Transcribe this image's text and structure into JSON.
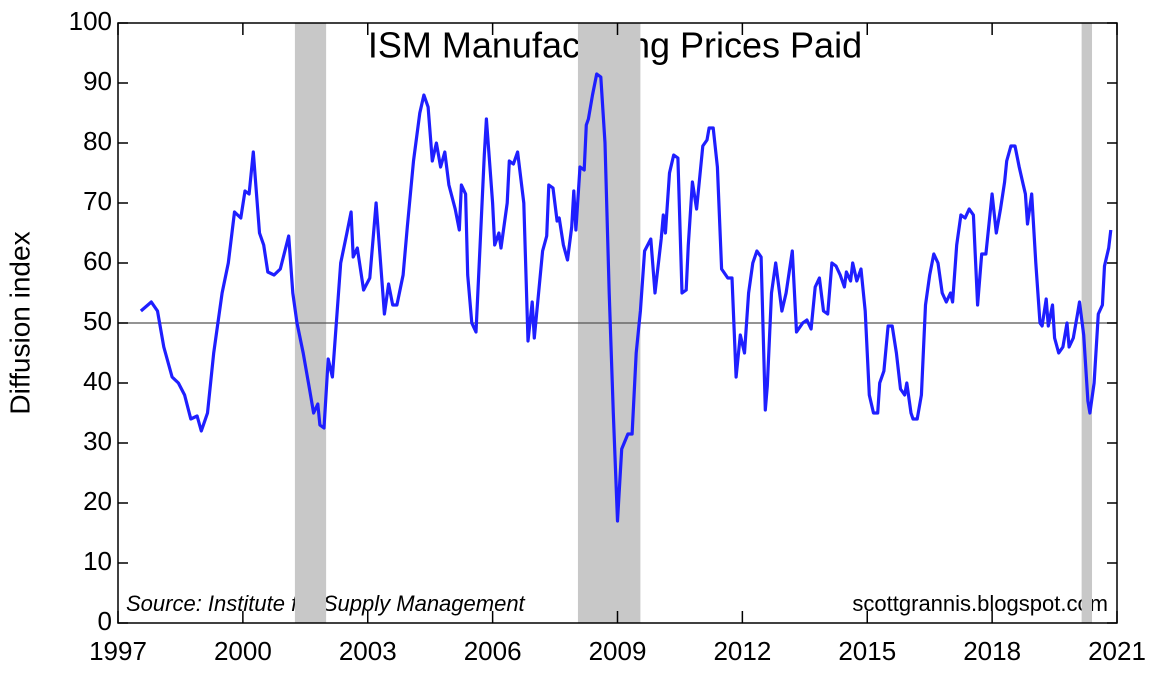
{
  "chart_data": {
    "type": "line",
    "title": "ISM Manufacturing Prices Paid",
    "ylabel": "Diffusion index",
    "annotations": [
      "Source: Institute for Supply Management",
      "scottgrannis.blogspot.com"
    ],
    "color": "#1f1fff",
    "recession_color": "#c8c8c8",
    "recessions": [
      [
        2001.25,
        2002.0
      ],
      [
        2008.05,
        2009.55
      ],
      [
        2020.15,
        2020.4
      ]
    ],
    "reference_line": 50,
    "xlim": [
      1997,
      2021
    ],
    "xticks": [
      1997,
      2000,
      2003,
      2006,
      2009,
      2012,
      2015,
      2018,
      2021
    ],
    "ylim": [
      0,
      100
    ],
    "yticks": [
      0,
      10,
      20,
      30,
      40,
      50,
      60,
      70,
      80,
      90,
      100
    ],
    "x": [
      1997.55,
      1997.8,
      1997.95,
      1998.1,
      1998.3,
      1998.45,
      1998.6,
      1998.75,
      1998.9,
      1999.0,
      1999.15,
      1999.3,
      1999.5,
      1999.65,
      1999.8,
      1999.95,
      2000.05,
      2000.15,
      2000.25,
      2000.4,
      2000.5,
      2000.6,
      2000.75,
      2000.9,
      2001.1,
      2001.2,
      2001.3,
      2001.45,
      2001.6,
      2001.7,
      2001.8,
      2001.85,
      2001.95,
      2002.05,
      2002.15,
      2002.35,
      2002.5,
      2002.6,
      2002.65,
      2002.75,
      2002.9,
      2003.05,
      2003.2,
      2003.4,
      2003.5,
      2003.6,
      2003.7,
      2003.85,
      2003.95,
      2004.1,
      2004.25,
      2004.35,
      2004.45,
      2004.55,
      2004.65,
      2004.75,
      2004.85,
      2004.95,
      2005.1,
      2005.2,
      2005.25,
      2005.35,
      2005.4,
      2005.5,
      2005.6,
      2005.7,
      2005.8,
      2005.85,
      2006.0,
      2006.05,
      2006.15,
      2006.2,
      2006.35,
      2006.4,
      2006.5,
      2006.6,
      2006.75,
      2006.85,
      2006.95,
      2007.0,
      2007.2,
      2007.3,
      2007.35,
      2007.45,
      2007.55,
      2007.6,
      2007.7,
      2007.8,
      2007.9,
      2007.95,
      2008.0,
      2008.1,
      2008.2,
      2008.25,
      2008.3,
      2008.4,
      2008.5,
      2008.6,
      2008.7,
      2008.8,
      2008.9,
      2009.0,
      2009.1,
      2009.25,
      2009.35,
      2009.45,
      2009.55,
      2009.65,
      2009.8,
      2009.9,
      2010.05,
      2010.1,
      2010.15,
      2010.25,
      2010.35,
      2010.45,
      2010.55,
      2010.65,
      2010.7,
      2010.8,
      2010.9,
      2011.05,
      2011.15,
      2011.2,
      2011.3,
      2011.4,
      2011.5,
      2011.65,
      2011.75,
      2011.85,
      2011.95,
      2012.05,
      2012.15,
      2012.25,
      2012.35,
      2012.45,
      2012.55,
      2012.6,
      2012.7,
      2012.8,
      2012.95,
      2013.05,
      2013.2,
      2013.3,
      2013.45,
      2013.55,
      2013.65,
      2013.75,
      2013.85,
      2013.95,
      2014.05,
      2014.15,
      2014.25,
      2014.35,
      2014.45,
      2014.5,
      2014.6,
      2014.65,
      2014.75,
      2014.85,
      2014.95,
      2015.05,
      2015.15,
      2015.25,
      2015.3,
      2015.4,
      2015.5,
      2015.6,
      2015.7,
      2015.8,
      2015.9,
      2015.95,
      2016.05,
      2016.1,
      2016.2,
      2016.3,
      2016.4,
      2016.5,
      2016.6,
      2016.7,
      2016.8,
      2016.9,
      2017.0,
      2017.05,
      2017.15,
      2017.25,
      2017.35,
      2017.45,
      2017.55,
      2017.65,
      2017.75,
      2017.85,
      2018.0,
      2018.1,
      2018.2,
      2018.3,
      2018.35,
      2018.45,
      2018.55,
      2018.65,
      2018.75,
      2018.8,
      2018.85,
      2018.95,
      2019.05,
      2019.15,
      2019.2,
      2019.3,
      2019.35,
      2019.45,
      2019.5,
      2019.6,
      2019.7,
      2019.8,
      2019.85,
      2019.95,
      2020.05,
      2020.1,
      2020.2,
      2020.3,
      2020.35,
      2020.45,
      2020.55,
      2020.65,
      2020.7,
      2020.8,
      2020.85
    ],
    "values": [
      52,
      53.5,
      52,
      46,
      41,
      40,
      38,
      34,
      34.5,
      32,
      35,
      45,
      55,
      60,
      68.5,
      67.5,
      72,
      71.5,
      78.5,
      65,
      63,
      58.5,
      58,
      59,
      64.5,
      55,
      50,
      45,
      39,
      35,
      36.5,
      33,
      32.5,
      44,
      41,
      60,
      65,
      68.5,
      61,
      62.5,
      55.5,
      57.5,
      70,
      51.5,
      56.5,
      53,
      53,
      58,
      66,
      77,
      85,
      88,
      86,
      77,
      80,
      76,
      78.5,
      73,
      69,
      65.5,
      73,
      71.5,
      58,
      50,
      48.5,
      63,
      78,
      84,
      70,
      63,
      65,
      62.5,
      70,
      77,
      76.5,
      78.5,
      70,
      47,
      53.5,
      47.5,
      62,
      64.5,
      73,
      72.5,
      67,
      67.5,
      63,
      60.5,
      66,
      72,
      65.5,
      76,
      75.5,
      83,
      84,
      88,
      91.5,
      91,
      80,
      55,
      35,
      17,
      29,
      31.5,
      31.5,
      45,
      52,
      62,
      64,
      55,
      64,
      68,
      65,
      75,
      78,
      77.5,
      55,
      55.5,
      63,
      73.5,
      69,
      79.5,
      80.5,
      82.5,
      82.5,
      76,
      59,
      57.5,
      57.5,
      41,
      48,
      45,
      55,
      60,
      62,
      61,
      35.5,
      39.5,
      55,
      60,
      52,
      55,
      62,
      48.5,
      50,
      50.5,
      49,
      56,
      57.5,
      52,
      51.5,
      60,
      59.5,
      58,
      56,
      58.5,
      57,
      60,
      57,
      59,
      52,
      38,
      35,
      35,
      40,
      42,
      49.5,
      49.5,
      45,
      39,
      38,
      40,
      35,
      34,
      34,
      38,
      53,
      58,
      61.5,
      60,
      55,
      53.5,
      55,
      53.5,
      63,
      68,
      67.5,
      69,
      68,
      53,
      61.5,
      61.5,
      71.5,
      65,
      69,
      73.5,
      77,
      79.5,
      79.5,
      76,
      73,
      71.5,
      66.5,
      71.5,
      60,
      50,
      49.5,
      54,
      49.5,
      53,
      47.5,
      45,
      46,
      50,
      46,
      47.5,
      51.5,
      53.5,
      48,
      37,
      35,
      40,
      51.5,
      53,
      59.5,
      62.5,
      65.5
    ]
  }
}
